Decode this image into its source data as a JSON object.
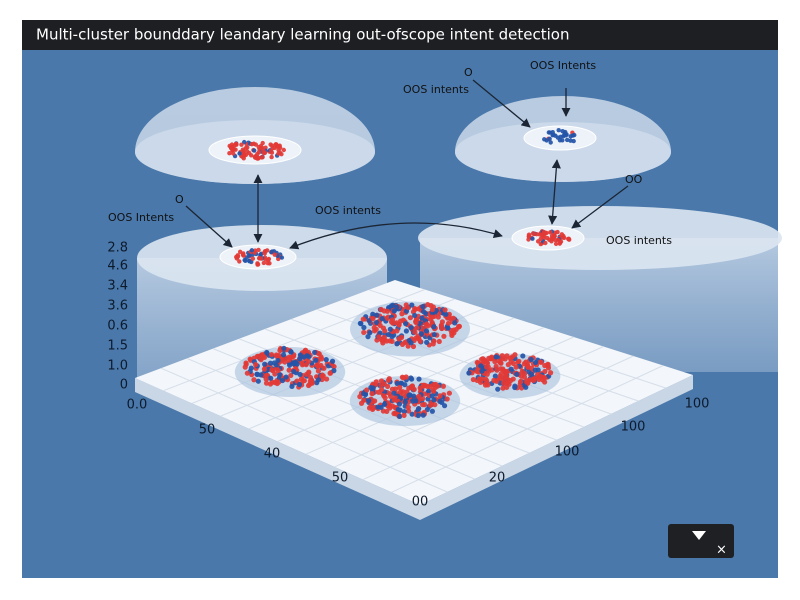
{
  "header": {
    "title": "Multi-cluster bounddary leandary learning out-ofscope intent detection"
  },
  "labels": [
    {
      "text": "O"
    },
    {
      "text": "OOS Intents"
    },
    {
      "text": "OOS intents"
    },
    {
      "text": "O"
    },
    {
      "text": "OOS Intents"
    },
    {
      "text": "OOS intents"
    },
    {
      "text": "OO"
    },
    {
      "text": "OOS intents"
    }
  ],
  "axis_labels": {
    "left": [
      "2.8",
      "4.6",
      "3.4",
      "3.6",
      "0.6",
      "1.5",
      "1.0",
      "0"
    ],
    "bottom": [
      "0.0",
      "50",
      "40",
      "50",
      "00",
      "20",
      "100",
      "100",
      "100"
    ]
  }
}
